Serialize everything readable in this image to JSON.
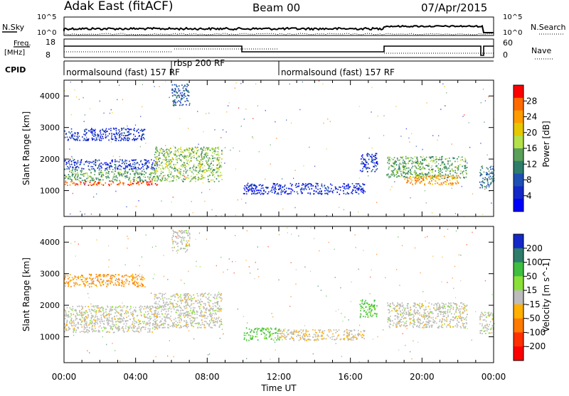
{
  "header": {
    "station": "Adak East (fitACF)",
    "beam": "Beam 00",
    "date": "07/Apr/2015"
  },
  "top_panel": {
    "nsky_label": "N.Sky",
    "nsky_ticks": [
      "10^5",
      "10^0"
    ],
    "nsearch_label": "N.Search",
    "nsearch_ticks": [
      "10^5",
      "10^0"
    ],
    "freq_label": "Freq.",
    "freq_unit": "[MHz]",
    "freq_ticks": [
      "18",
      "8"
    ],
    "nave_label": "Nave",
    "nave_ticks": [
      "60",
      "0"
    ],
    "cpid_label": "CPID",
    "cpid_segments": [
      {
        "label": "normalsound (fast) 157 RF",
        "start_hour": 0.0,
        "end_hour": 6.0
      },
      {
        "label": "rbsp 200 RF",
        "start_hour": 6.0,
        "end_hour": 12.0
      },
      {
        "label": "normalsound (fast) 157 RF",
        "start_hour": 12.0,
        "end_hour": 24.0
      }
    ]
  },
  "power_colorbar": {
    "label": "Power [dB]",
    "ticks": [
      "28",
      "24",
      "20",
      "16",
      "12",
      "8",
      "4"
    ],
    "colors": [
      "#ff0000",
      "#ff6a00",
      "#ff9d00",
      "#e6c800",
      "#b4e04a",
      "#5aa05a",
      "#2e7d6b",
      "#1e50b4",
      "#1428c8",
      "#0000ff"
    ]
  },
  "velocity_colorbar": {
    "label": "Velocity [m s^-1]",
    "ticks": [
      "200",
      "100",
      "50",
      "15",
      "-15",
      "-50",
      "-100",
      "-200"
    ],
    "colors": [
      "#1428c8",
      "#2e7d6b",
      "#3fbf3f",
      "#8ae03a",
      "#bcbcbc",
      "#ffb000",
      "#ff7a00",
      "#ff3000",
      "#ff0000"
    ]
  },
  "chart_data": [
    {
      "type": "heatmap",
      "panel": "power",
      "ylabel": "Slant Range [km]",
      "xlabel": "Time UT",
      "x_ticks": [
        "00:00",
        "04:00",
        "08:00",
        "12:00",
        "16:00",
        "20:00",
        "00:00"
      ],
      "xlim": [
        0,
        24
      ],
      "y_ticks": [
        "1000",
        "2000",
        "3000",
        "4000"
      ],
      "ylim": [
        180,
        4500
      ],
      "scatter_bands": [
        {
          "t0": 0.0,
          "t1": 5.2,
          "r0": 1180,
          "r1": 1320,
          "value": 28
        },
        {
          "t0": 0.0,
          "t1": 5.2,
          "r0": 1320,
          "r1": 1700,
          "value": 14
        },
        {
          "t0": 0.0,
          "t1": 5.2,
          "r0": 1700,
          "r1": 2000,
          "value": 6
        },
        {
          "t0": 0.0,
          "t1": 4.5,
          "r0": 2600,
          "r1": 3000,
          "value": 6
        },
        {
          "t0": 5.0,
          "t1": 8.8,
          "r0": 1300,
          "r1": 2400,
          "value": 16
        },
        {
          "t0": 6.0,
          "t1": 7.0,
          "r0": 3700,
          "r1": 4400,
          "value": 8
        },
        {
          "t0": 10.0,
          "t1": 16.8,
          "r0": 900,
          "r1": 1250,
          "value": 5
        },
        {
          "t0": 16.5,
          "t1": 17.5,
          "r0": 1600,
          "r1": 2200,
          "value": 6
        },
        {
          "t0": 18.0,
          "t1": 22.5,
          "r0": 1400,
          "r1": 2100,
          "value": 14
        },
        {
          "t0": 19.0,
          "t1": 22.0,
          "r0": 1200,
          "r1": 1500,
          "value": 24
        },
        {
          "t0": 23.2,
          "t1": 24.0,
          "r0": 1100,
          "r1": 1800,
          "value": 10
        }
      ]
    },
    {
      "type": "heatmap",
      "panel": "velocity",
      "ylabel": "Slant Range [km]",
      "xlabel": "Time UT",
      "x_ticks": [
        "00:00",
        "04:00",
        "08:00",
        "12:00",
        "16:00",
        "20:00",
        "00:00"
      ],
      "xlim": [
        0,
        24
      ],
      "y_ticks": [
        "1000",
        "2000",
        "3000",
        "4000"
      ],
      "ylim": [
        180,
        4500
      ],
      "scatter_bands": [
        {
          "t0": 0.0,
          "t1": 5.2,
          "r0": 1150,
          "r1": 2000,
          "value": 0
        },
        {
          "t0": 0.0,
          "t1": 4.5,
          "r0": 2600,
          "r1": 3000,
          "value": -30
        },
        {
          "t0": 5.0,
          "t1": 8.8,
          "r0": 1300,
          "r1": 2400,
          "value": 0
        },
        {
          "t0": 6.0,
          "t1": 7.0,
          "r0": 3700,
          "r1": 4400,
          "value": 0
        },
        {
          "t0": 10.0,
          "t1": 12.0,
          "r0": 900,
          "r1": 1300,
          "value": 40
        },
        {
          "t0": 12.0,
          "t1": 16.8,
          "r0": 900,
          "r1": 1250,
          "value": -10
        },
        {
          "t0": 16.5,
          "t1": 17.5,
          "r0": 1600,
          "r1": 2200,
          "value": 40
        },
        {
          "t0": 18.0,
          "t1": 22.5,
          "r0": 1300,
          "r1": 2100,
          "value": 0
        },
        {
          "t0": 23.2,
          "t1": 24.0,
          "r0": 1100,
          "r1": 1800,
          "value": 0
        }
      ]
    }
  ],
  "axis": {
    "xlabel": "Time UT",
    "ylabel": "Slant Range [km]"
  }
}
